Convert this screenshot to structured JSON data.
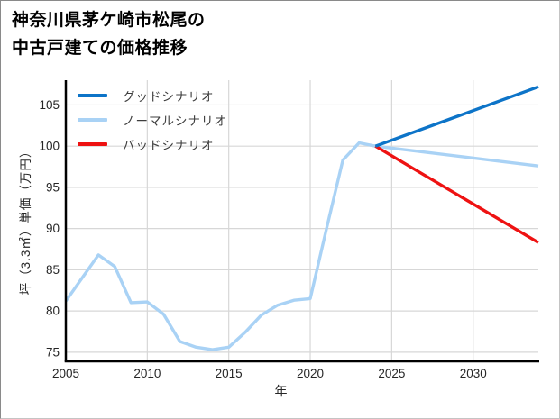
{
  "figure": {
    "background": "#ffffff",
    "border_color": "#c4c4c4"
  },
  "chart_data": {
    "type": "line",
    "title": "神奈川県茅ケ崎市松尾の中古戸建ての価格推移",
    "title_lines": [
      "神奈川県茅ケ崎市松尾の",
      "中古戸建ての価格推移"
    ],
    "xlabel": "年",
    "ylabel": "坪（3.3㎡）単価（万円）",
    "xlim": [
      2005,
      2034
    ],
    "ylim": [
      74,
      108
    ],
    "x_ticks": [
      2005,
      2010,
      2015,
      2020,
      2025,
      2030
    ],
    "y_ticks": [
      75,
      80,
      85,
      90,
      95,
      100,
      105
    ],
    "grid": true,
    "legend_position": "upper-left",
    "colors": {
      "grid": "#d7d7d7",
      "axis": "#000000",
      "tick_text": "#262626",
      "good": "#0d74c8",
      "normal": "#a9d2f5",
      "bad": "#ee1212"
    },
    "series": [
      {
        "name": "グッドシナリオ",
        "color": "#0d74c8",
        "x": [
          2024,
          2034
        ],
        "values": [
          100.0,
          107.2
        ]
      },
      {
        "name": "ノーマルシナリオ",
        "color": "#a9d2f5",
        "x": [
          2005,
          2006,
          2007,
          2008,
          2009,
          2010,
          2011,
          2012,
          2013,
          2014,
          2015,
          2016,
          2017,
          2018,
          2019,
          2020,
          2021,
          2022,
          2023,
          2024,
          2034
        ],
        "values": [
          81.2,
          84.0,
          86.8,
          85.4,
          81.0,
          81.1,
          79.6,
          76.3,
          75.6,
          75.3,
          75.6,
          77.4,
          79.5,
          80.7,
          81.3,
          81.5,
          90.0,
          98.3,
          100.4,
          100.0,
          97.6
        ]
      },
      {
        "name": "バッドシナリオ",
        "color": "#ee1212",
        "x": [
          2024,
          2034
        ],
        "values": [
          100.0,
          88.3
        ]
      }
    ]
  }
}
